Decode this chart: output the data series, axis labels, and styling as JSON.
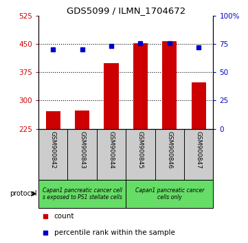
{
  "title": "GDS5099 / ILMN_1704672",
  "samples": [
    "GSM900842",
    "GSM900843",
    "GSM900844",
    "GSM900845",
    "GSM900846",
    "GSM900847"
  ],
  "counts": [
    272,
    274,
    400,
    452,
    458,
    348
  ],
  "percentile_ranks": [
    70,
    70,
    73,
    76,
    76,
    72
  ],
  "ylim_left": [
    225,
    525
  ],
  "yticks_left": [
    225,
    300,
    375,
    450,
    525
  ],
  "ylim_right": [
    0,
    100
  ],
  "yticks_right": [
    0,
    25,
    50,
    75,
    100
  ],
  "ytick_labels_right": [
    "0",
    "25",
    "50",
    "75",
    "100%"
  ],
  "bar_color": "#cc0000",
  "dot_color": "#0000cc",
  "grid_color": "#000000",
  "protocol_groups": [
    {
      "label": "Capan1 pancreatic cancer cell\ns exposed to PS1 stellate cells",
      "color": "#66dd66"
    },
    {
      "label": "Capan1 pancreatic cancer\ncells only",
      "color": "#66dd66"
    }
  ],
  "protocol_label": "protocol",
  "legend_items": [
    {
      "color": "#cc0000",
      "label": "count"
    },
    {
      "color": "#0000cc",
      "label": "percentile rank within the sample"
    }
  ],
  "bar_width": 0.5,
  "tick_label_color_left": "#cc0000",
  "tick_label_color_right": "#0000cc",
  "background_color": "#ffffff",
  "xticklabel_area_color": "#cccccc",
  "gridline_values": [
    300,
    375,
    450
  ]
}
